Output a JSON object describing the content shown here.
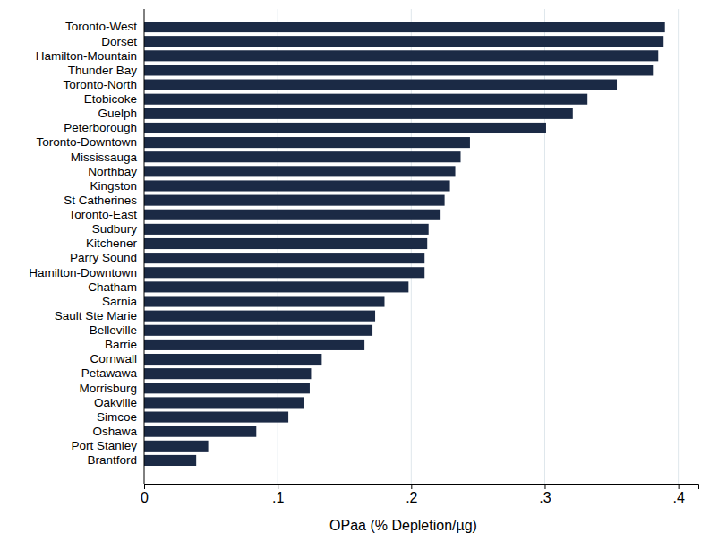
{
  "chart_data": {
    "type": "bar",
    "orientation": "horizontal",
    "categories": [
      "Toronto-West",
      "Dorset",
      "Hamilton-Mountain",
      "Thunder Bay",
      "Toronto-North",
      "Etobicoke",
      "Guelph",
      "Peterborough",
      "Toronto-Downtown",
      "Mississauga",
      "Northbay",
      "Kingston",
      "St Catherines",
      "Toronto-East",
      "Sudbury",
      "Kitchener",
      "Parry Sound",
      "Hamilton-Downtown",
      "Chatham",
      "Sarnia",
      "Sault Ste Marie",
      "Belleville",
      "Barrie",
      "Cornwall",
      "Petawawa",
      "Morrisburg",
      "Oakville",
      "Simcoe",
      "Oshawa",
      "Port Stanley",
      "Brantford"
    ],
    "values": [
      0.39,
      0.389,
      0.385,
      0.381,
      0.354,
      0.332,
      0.321,
      0.301,
      0.244,
      0.237,
      0.233,
      0.229,
      0.225,
      0.222,
      0.213,
      0.212,
      0.21,
      0.21,
      0.198,
      0.18,
      0.173,
      0.171,
      0.165,
      0.133,
      0.125,
      0.124,
      0.12,
      0.108,
      0.084,
      0.048,
      0.039
    ],
    "color": "#1b2a45",
    "xlabel": "OPaa (% Depletion/µg)",
    "xlim": [
      0,
      0.415
    ],
    "xticks": [
      0,
      {
        "value": 0.1,
        "label": ".1"
      },
      {
        "value": 0.2,
        "label": ".2"
      },
      {
        "value": 0.3,
        "label": ".3"
      },
      {
        "value": 0.4,
        "label": ".4"
      }
    ],
    "grid": true
  }
}
